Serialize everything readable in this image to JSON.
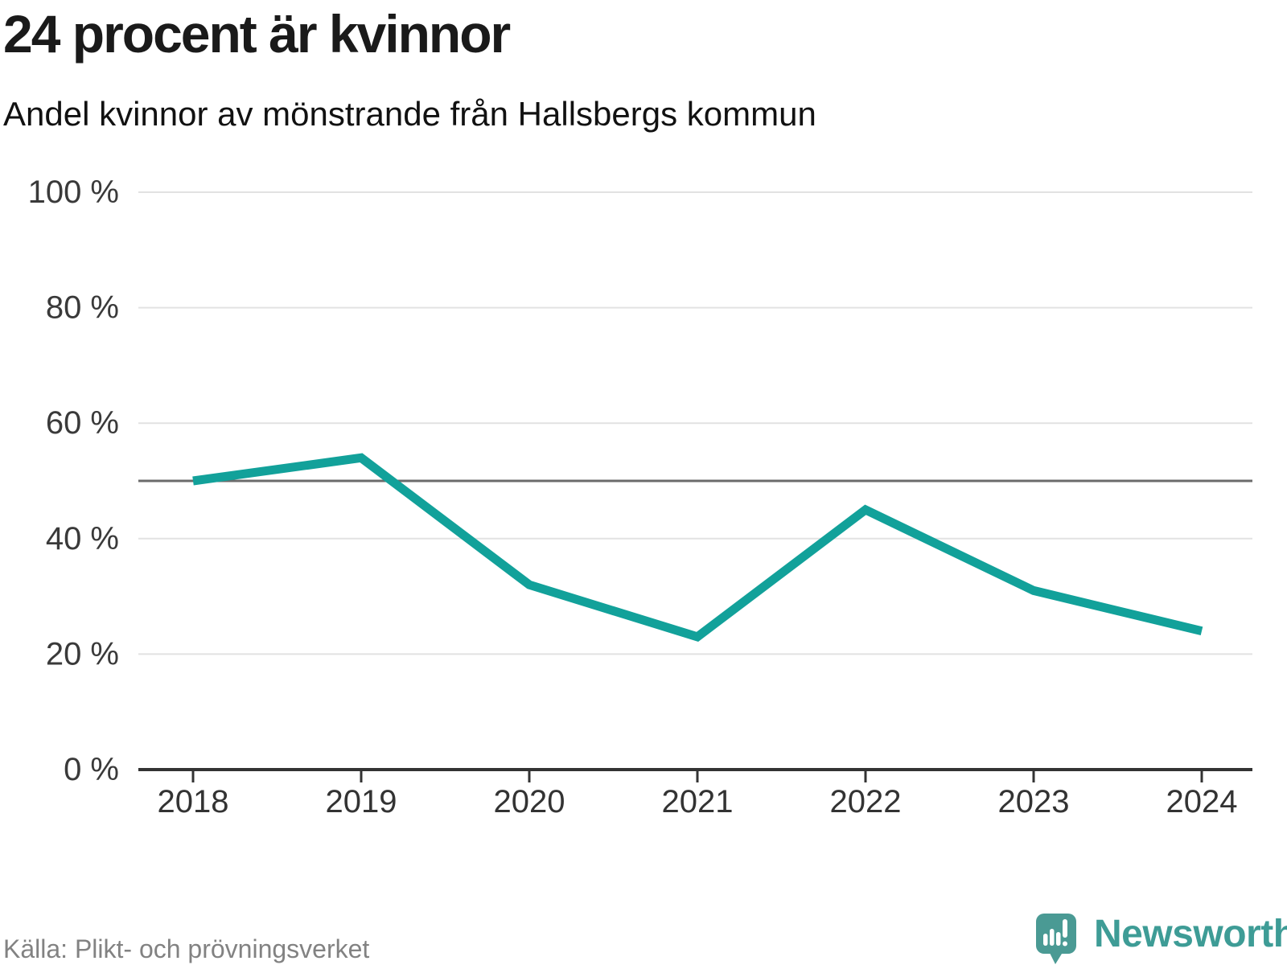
{
  "header": {
    "title": "24 procent är kvinnor",
    "subtitle": "Andel kvinnor av mönstrande från Hallsbergs kommun"
  },
  "chart_data": {
    "type": "line",
    "title": "24 procent är kvinnor",
    "subtitle": "Andel kvinnor av mönstrande från Hallsbergs kommun",
    "x": [
      2018,
      2019,
      2020,
      2021,
      2022,
      2023,
      2024
    ],
    "values": [
      50,
      54,
      32,
      23,
      45,
      31,
      24
    ],
    "unit": "%",
    "ylim": [
      0,
      100
    ],
    "yticks": [
      0,
      20,
      40,
      60,
      80,
      100
    ],
    "ytick_suffix": " %",
    "reference_line": 50,
    "grid": true,
    "legend": "none",
    "line_color": "#12A19A"
  },
  "footer": {
    "source": "Källa: Plikt- och prövningsverket",
    "brand": "Newsworthy"
  },
  "colors": {
    "line_color": "#12A19A",
    "ref_color": "#6B6B6B",
    "grid_color": "#E2E2E2",
    "axis_color": "#333333",
    "label_color": "#3A3A3A",
    "title_color": "#1A1A1A",
    "subtitle_color": "#111111",
    "source_color": "#828282",
    "brand_teal": "#4A9A94",
    "brand_text": "#3E9C96"
  }
}
